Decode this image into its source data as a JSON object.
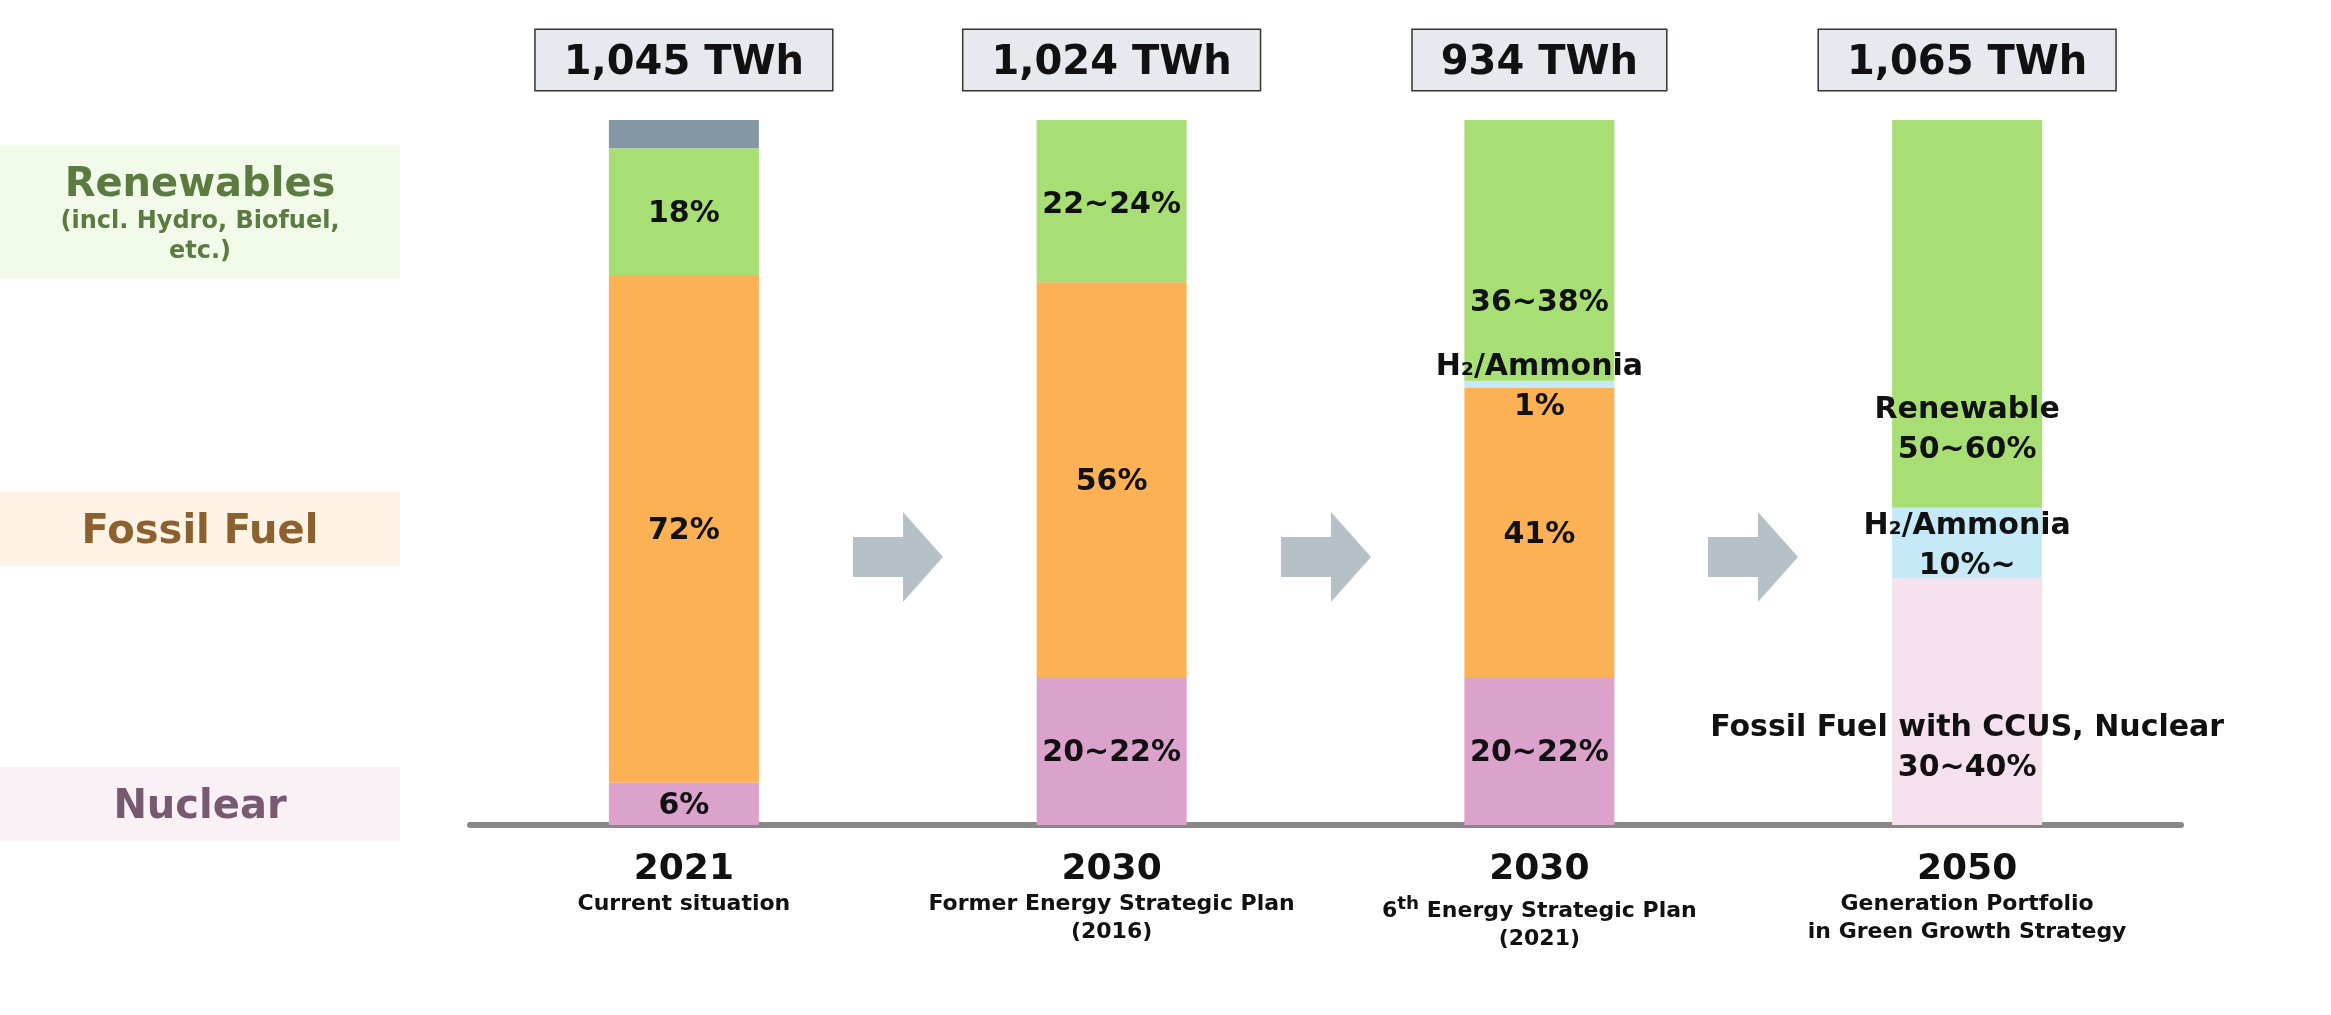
{
  "chart_data": {
    "type": "bar",
    "stacked": true,
    "categories": [
      "2021\nCurrent situation",
      "2030\nFormer Energy Strategic Plan\n(2016)",
      "2030\n6$^{th}$ Energy Strategic Plan\n(2021)",
      "2050\nGeneration Portfolio\nin Green Growth Strategy"
    ],
    "ylim": [
      0,
      100
    ],
    "tick_labels": "x",
    "legend": "left",
    "series": [
      {
        "name": "Nuclear",
        "color": "#dba3cb",
        "values": [
          6,
          21,
          21,
          null
        ],
        "value_labels": [
          "6%",
          null,
          null,
          null
        ]
      },
      {
        "name": "Fossil Fuel",
        "color": "#fdb155",
        "values": [
          72,
          56,
          41,
          null
        ],
        "value_labels": [
          "72%",
          "56%",
          "41%",
          null
        ]
      },
      {
        "color": "#f5e0ee",
        "values": [
          null,
          null,
          null,
          35
        ]
      },
      {
        "color": "#c6e9f8",
        "values": [
          null,
          null,
          1,
          10
        ],
        "value_labels": [
          null,
          null,
          "H₂/Ammonia\n1%",
          null
        ]
      },
      {
        "name": "Renewables\n(incl. Hydro, Biofuel,\netc.)",
        "color": "#a8df74",
        "values": [
          18,
          23,
          37,
          55
        ],
        "value_labels": [
          "18%",
          null,
          null,
          null
        ]
      },
      {
        "color": "#8497a4",
        "values": [
          4,
          null,
          null,
          null
        ]
      }
    ],
    "annotations": [
      {
        "text": "1,045 TWh",
        "x": "2021\nCurrent situation",
        "y": 100
      },
      {
        "text": "1,024 TWh",
        "x": "2030\nFormer Energy Strategic Plan\n(2016)",
        "y": 100
      },
      {
        "text": "934 TWh",
        "x": "2030\n6$^{th}$ Energy Strategic Plan\n(2021)",
        "y": 100
      },
      {
        "text": "1,065 TWh",
        "x": "2050\nGeneration Portfolio\nin Green Growth Strategy",
        "y": 100
      },
      {
        "text": "20~22%",
        "x": "2030\nFormer Energy Strategic Plan\n(2016)",
        "y": 0
      },
      {
        "text": "22~24%",
        "x": "2030\nFormer Energy Strategic Plan\n(2016)",
        "y": 77
      },
      {
        "text": "20~22%",
        "x": "2030\n6$^{th}$ Energy Strategic Plan\n(2021)",
        "y": 0
      },
      {
        "text": "36~38%",
        "x": "2030\n6$^{th}$ Energy Strategic Plan\n(2021)",
        "y": 63
      },
      {
        "text": "Fossil Fuel with CCUS, Nuclear\n30~40%",
        "x": "2050\nGeneration Portfolio\nin Green Growth Strategy",
        "y": 0
      },
      {
        "text": "H₂/Ammonia\n10%~",
        "x": "2050\nGeneration Portfolio\nin Green Growth Strategy",
        "y": 35
      },
      {
        "text": "Renewable\n50~60%",
        "x": "2050\nGeneration Portfolio\nin Green Growth Strategy",
        "y": 45
      }
    ]
  }
}
